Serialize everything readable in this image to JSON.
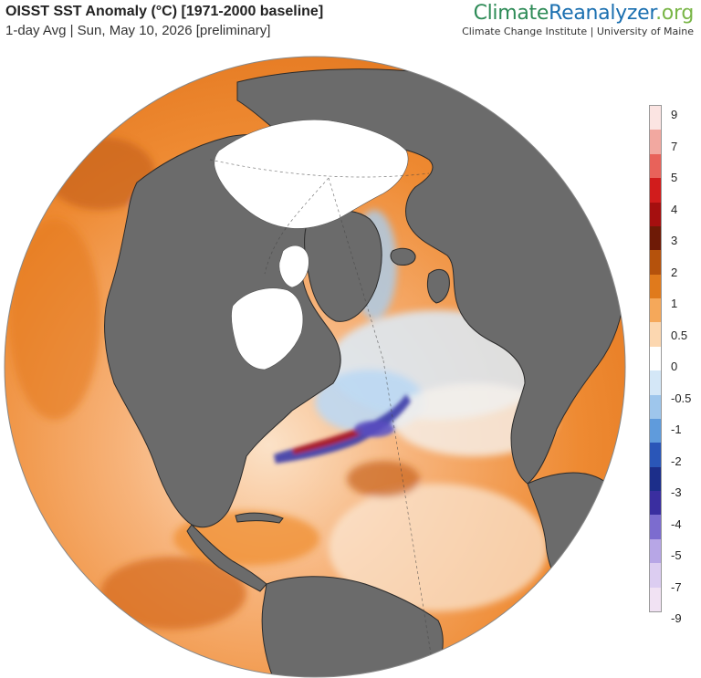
{
  "header": {
    "title": "OISST SST Anomaly (°C) [1971-2000 baseline]",
    "subtitle": "1-day Avg | Sun, May 10, 2026 [preliminary]"
  },
  "brand": {
    "name_part1": "Climate",
    "name_part2": "Reanalyzer",
    "name_part3": ".org",
    "affiliation": "Climate Change Institute | University of Maine"
  },
  "legend": {
    "labels": [
      "9",
      "7",
      "5",
      "4",
      "3",
      "2",
      "1",
      "0.5",
      "0",
      "-0.5",
      "-1",
      "-2",
      "-3",
      "-4",
      "-5",
      "-7",
      "-9"
    ],
    "colors": [
      "#fbe4e2",
      "#f2a8a0",
      "#e8625a",
      "#d11c1c",
      "#a50f0f",
      "#6e1a06",
      "#b5520c",
      "#e07a1c",
      "#f5a85a",
      "#fcd7b0",
      "#ffffff",
      "#d4e7f7",
      "#9ec6ec",
      "#5f9bdc",
      "#2a56b8",
      "#1c2e8a",
      "#3a2ea0",
      "#7c6ccf",
      "#b7a6e6",
      "#dccdf1",
      "#f1e2f3"
    ]
  },
  "map": {
    "projection": "orthographic",
    "land_color": "#6b6b6b",
    "ice_color": "#ffffff",
    "warm_color": "#f08a2a",
    "cool_color": "#a9cdee"
  }
}
